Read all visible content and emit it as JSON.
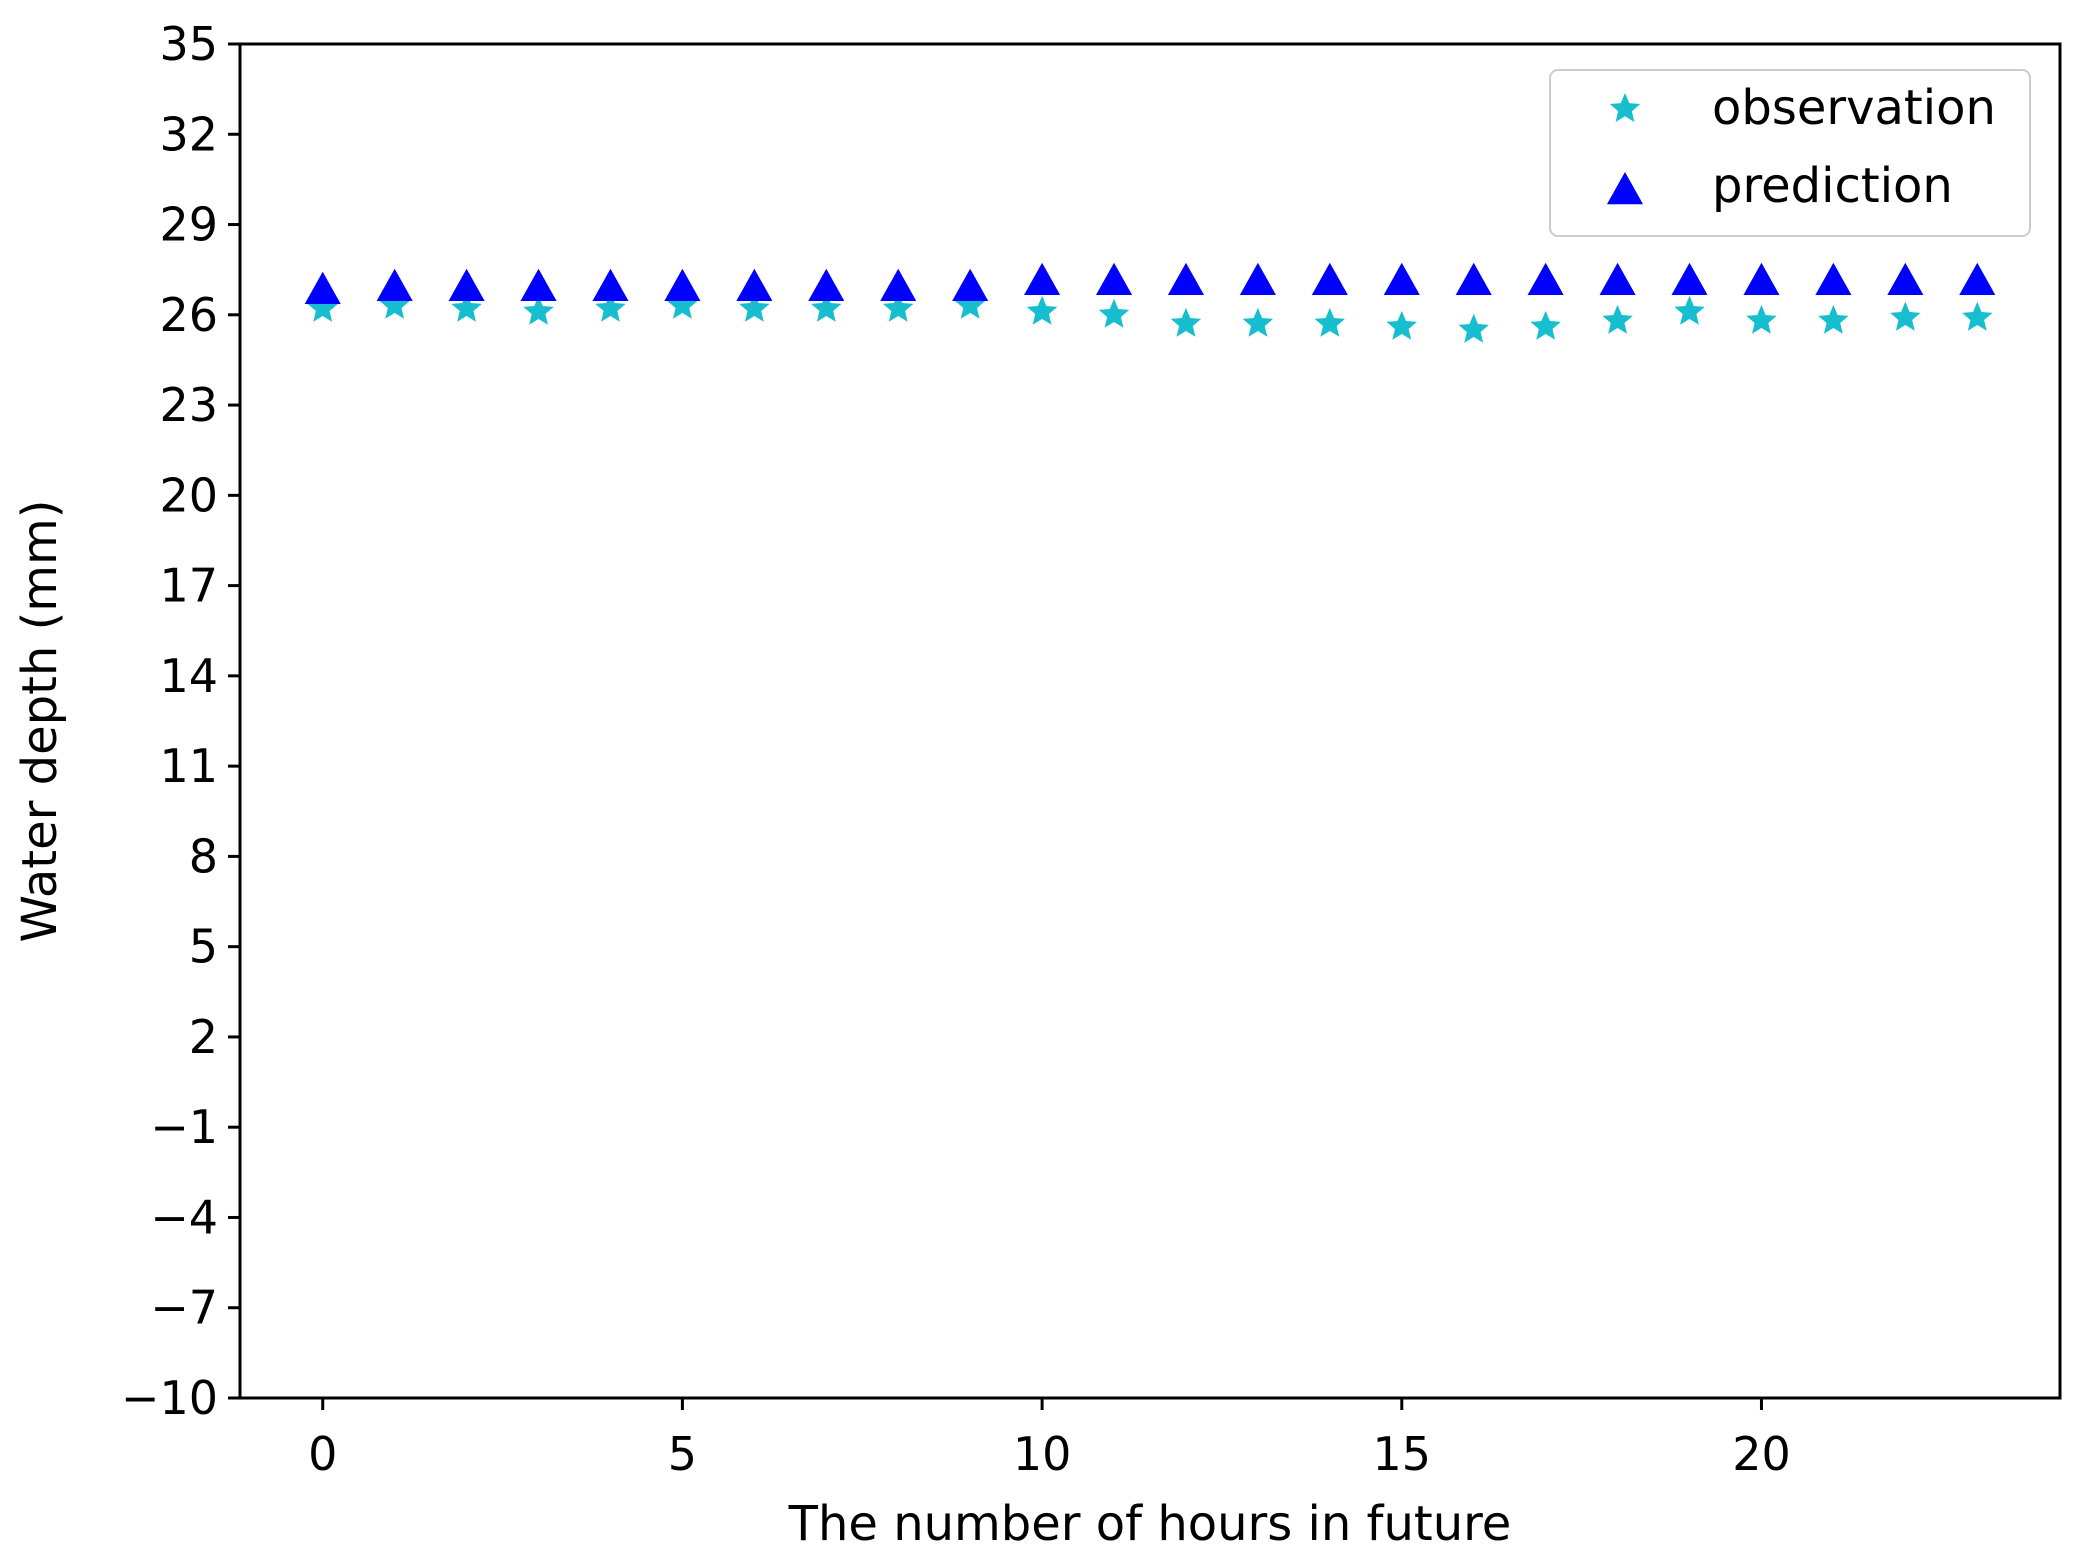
{
  "chart_data": {
    "type": "scatter",
    "xlabel": "The number of hours in future",
    "ylabel": "Water depth (mm)",
    "xlim": [
      -1.15,
      24.15
    ],
    "ylim": [
      -10,
      35
    ],
    "xticks": [
      0,
      5,
      10,
      15,
      20
    ],
    "yticks": [
      -10,
      -7,
      -4,
      -1,
      2,
      5,
      8,
      11,
      14,
      17,
      20,
      23,
      26,
      29,
      32,
      35
    ],
    "grid": false,
    "legend_position": "upper right",
    "x": [
      0,
      1,
      2,
      3,
      4,
      5,
      6,
      7,
      8,
      9,
      10,
      11,
      12,
      13,
      14,
      15,
      16,
      17,
      18,
      19,
      20,
      21,
      22,
      23
    ],
    "series": [
      {
        "name": "observation",
        "marker": "star",
        "color": "#17becf",
        "values": [
          26.2,
          26.3,
          26.2,
          26.1,
          26.2,
          26.3,
          26.2,
          26.2,
          26.2,
          26.3,
          26.1,
          26.0,
          25.7,
          25.7,
          25.7,
          25.6,
          25.5,
          25.6,
          25.8,
          26.1,
          25.8,
          25.8,
          25.9,
          25.9
        ]
      },
      {
        "name": "prediction",
        "marker": "triangle",
        "color": "#0000ff",
        "values": [
          26.8,
          26.9,
          26.9,
          26.9,
          26.9,
          26.9,
          26.9,
          26.9,
          26.9,
          26.9,
          27.1,
          27.1,
          27.1,
          27.1,
          27.1,
          27.1,
          27.1,
          27.1,
          27.1,
          27.1,
          27.1,
          27.1,
          27.1,
          27.1
        ]
      }
    ]
  }
}
